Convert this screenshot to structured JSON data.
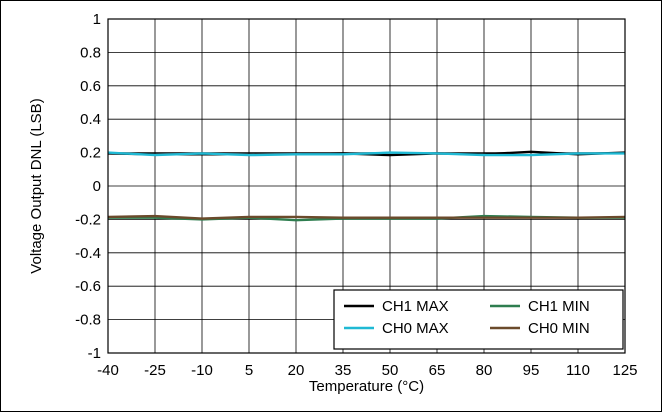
{
  "chart_data": {
    "type": "line",
    "title": "",
    "xlabel": "Temperature (°C)",
    "ylabel": "Voltage Output DNL (LSB)",
    "x": [
      -40,
      -25,
      -10,
      5,
      20,
      35,
      50,
      65,
      80,
      95,
      110,
      125
    ],
    "x_ticks": [
      "-40",
      "-25",
      "-10",
      "5",
      "20",
      "35",
      "50",
      "65",
      "80",
      "95",
      "110",
      "125"
    ],
    "y_ticks": [
      "1",
      "0.8",
      "0.6",
      "0.4",
      "0.2",
      "0",
      "-0.2",
      "-0.4",
      "-0.6",
      "-0.8",
      "-1"
    ],
    "xlim": [
      -40,
      125
    ],
    "ylim": [
      -1,
      1
    ],
    "grid": true,
    "legend_position": "bottom-right",
    "series": [
      {
        "name": "CH1 MAX",
        "color": "#000000",
        "values": [
          0.195,
          0.19,
          0.19,
          0.19,
          0.19,
          0.195,
          0.185,
          0.195,
          0.19,
          0.205,
          0.19,
          0.2
        ]
      },
      {
        "name": "CH0 MAX",
        "color": "#1fb9d4",
        "values": [
          0.2,
          0.185,
          0.195,
          0.185,
          0.19,
          0.19,
          0.2,
          0.195,
          0.185,
          0.185,
          0.195,
          0.195
        ]
      },
      {
        "name": "CH1 MIN",
        "color": "#2e7d4f",
        "values": [
          -0.19,
          -0.19,
          -0.2,
          -0.19,
          -0.205,
          -0.195,
          -0.195,
          -0.195,
          -0.18,
          -0.185,
          -0.19,
          -0.19
        ]
      },
      {
        "name": "CH0 MIN",
        "color": "#6b4a2b",
        "values": [
          -0.185,
          -0.18,
          -0.195,
          -0.185,
          -0.185,
          -0.19,
          -0.19,
          -0.19,
          -0.19,
          -0.19,
          -0.19,
          -0.185
        ]
      }
    ]
  }
}
